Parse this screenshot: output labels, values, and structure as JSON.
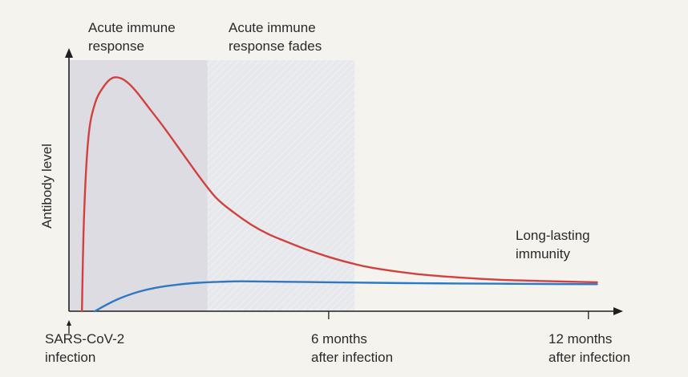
{
  "chart_data": {
    "type": "line",
    "ylabel": "Antibody level",
    "x_unit": "months",
    "xlim": [
      0,
      12.3
    ],
    "ylim": [
      0,
      1.05
    ],
    "regions": [
      {
        "label": [
          "Acute immune",
          "response"
        ],
        "x_start": 0,
        "x_end": 3.2,
        "color": "#dcdce2"
      },
      {
        "label": [
          "Acute immune",
          "response fades"
        ],
        "x_start": 3.2,
        "x_end": 6.6,
        "color": "#e6e8ec"
      }
    ],
    "ticks": [
      {
        "x": 0,
        "label": [
          "SARS-CoV-2",
          "infection"
        ]
      },
      {
        "x": 6,
        "label": [
          "6 months",
          "after infection"
        ]
      },
      {
        "x": 12,
        "label": [
          "12 months",
          "after infection"
        ]
      }
    ],
    "annotation": {
      "label": [
        "Long-lasting",
        "immunity"
      ]
    },
    "series": [
      {
        "color": "#d2413e",
        "x": [
          0.3,
          0.35,
          0.45,
          0.6,
          0.8,
          1.0,
          1.2,
          1.4,
          1.6,
          1.9,
          2.2,
          2.6,
          3.0,
          3.4,
          3.8,
          4.2,
          4.6,
          5.0,
          5.5,
          6.0,
          6.5,
          7.0,
          8.0,
          9.0,
          10.0,
          11.0,
          12.2
        ],
        "y": [
          0.0,
          0.4,
          0.72,
          0.86,
          0.93,
          0.966,
          0.965,
          0.94,
          0.9,
          0.83,
          0.76,
          0.66,
          0.56,
          0.47,
          0.41,
          0.36,
          0.32,
          0.29,
          0.255,
          0.225,
          0.2,
          0.18,
          0.155,
          0.14,
          0.13,
          0.125,
          0.12
        ]
      },
      {
        "color": "#2f78c4",
        "x": [
          0.6,
          0.9,
          1.2,
          1.6,
          2.0,
          2.5,
          3.0,
          3.5,
          4.0,
          5.0,
          6.0,
          7.0,
          8.0,
          9.0,
          10.0,
          11.0,
          12.2
        ],
        "y": [
          0.0,
          0.03,
          0.055,
          0.08,
          0.097,
          0.11,
          0.118,
          0.122,
          0.124,
          0.122,
          0.12,
          0.118,
          0.116,
          0.115,
          0.114,
          0.113,
          0.112
        ]
      }
    ]
  }
}
